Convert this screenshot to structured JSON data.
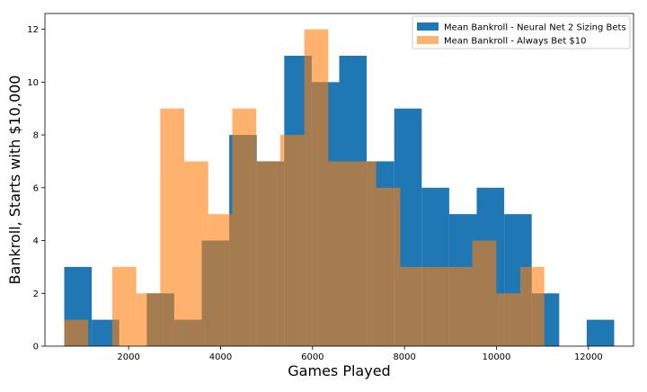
{
  "chart_data": {
    "type": "bar",
    "subtype": "overlaid-histogram",
    "title": "",
    "xlabel": "Games Played",
    "ylabel": "Bankroll, Starts with $10,000",
    "xlim": [
      180,
      12980
    ],
    "ylim": [
      0,
      12.6
    ],
    "xticks": [
      2000,
      4000,
      6000,
      8000,
      10000,
      12000
    ],
    "yticks": [
      0,
      2,
      4,
      6,
      8,
      10,
      12
    ],
    "grid": false,
    "legend_position": "top-right",
    "series": [
      {
        "name": "Mean Bankroll - Neural Net 2 Sizing Bets",
        "color": "#1f77b4",
        "opacity": 1.0,
        "bin_edges": [
          600,
          1198,
          1796,
          2394,
          2992,
          3590,
          4188,
          4786,
          5384,
          5982,
          6580,
          7178,
          7776,
          8374,
          8972,
          9570,
          10168,
          10766,
          11364,
          11962,
          12560
        ],
        "counts": [
          3,
          1,
          0,
          2,
          1,
          4,
          8,
          7,
          11,
          10,
          11,
          7,
          9,
          6,
          5,
          6,
          5,
          2,
          0,
          1
        ]
      },
      {
        "name": "Mean Bankroll - Always Bet $10",
        "color": "#ff7f0e",
        "opacity": 0.6,
        "bin_edges": [
          600,
          1122,
          1644,
          2166,
          2688,
          3210,
          3732,
          4254,
          4776,
          5298,
          5820,
          6342,
          6864,
          7386,
          7908,
          8430,
          8952,
          9474,
          9996,
          10518,
          11040
        ],
        "counts": [
          1,
          0,
          3,
          2,
          9,
          7,
          5,
          9,
          7,
          8,
          12,
          7,
          7,
          6,
          3,
          3,
          3,
          4,
          2,
          3
        ]
      }
    ]
  }
}
